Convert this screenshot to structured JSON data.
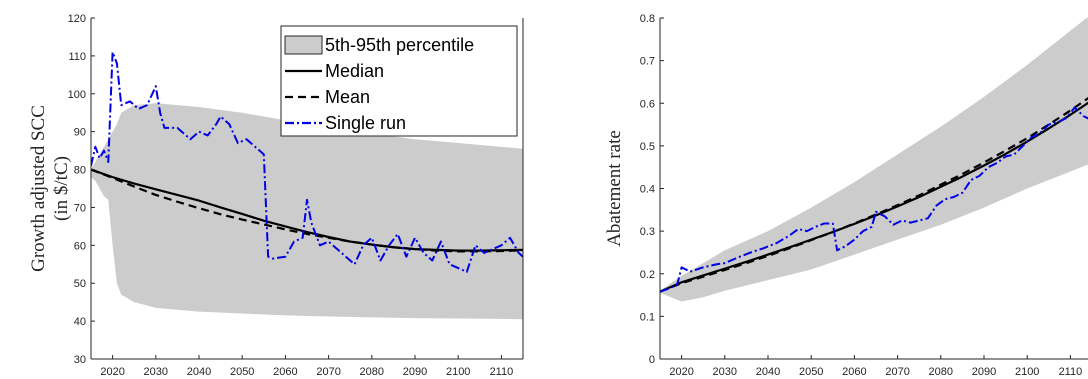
{
  "chart_data": [
    {
      "type": "line",
      "title": "",
      "xlabel": "",
      "ylabel": [
        "Growth adjusted SCC",
        "(in $/tC)"
      ],
      "xlim": [
        2015,
        2115
      ],
      "ylim": [
        30,
        120
      ],
      "xticks": [
        "2020",
        "2030",
        "2040",
        "2050",
        "2060",
        "2070",
        "2080",
        "2090",
        "2100",
        "2110"
      ],
      "yticks": [
        "30",
        "40",
        "50",
        "60",
        "70",
        "80",
        "90",
        "100",
        "110",
        "120"
      ],
      "grid": false,
      "legend_position": "top-right",
      "band": {
        "name": "5th-95th percentile",
        "color": "#cccccc",
        "x": [
          2015,
          2016,
          2017,
          2018,
          2019,
          2020,
          2021,
          2022,
          2025,
          2030,
          2040,
          2050,
          2060,
          2070,
          2080,
          2090,
          2100,
          2110,
          2115
        ],
        "upper": [
          80,
          82,
          84,
          86,
          88,
          90,
          92,
          95,
          97,
          97.5,
          96.5,
          95,
          93,
          91,
          89.5,
          88,
          87,
          86,
          85.5
        ],
        "lower": [
          78,
          77,
          75,
          73,
          72,
          60,
          50,
          47,
          45,
          43.5,
          42.5,
          42,
          41.5,
          41.2,
          41,
          40.8,
          40.7,
          40.6,
          40.5
        ]
      },
      "series": [
        {
          "name": "Median",
          "style": "solid",
          "color": "#000000",
          "x": [
            2015,
            2020,
            2025,
            2030,
            2035,
            2040,
            2045,
            2050,
            2055,
            2060,
            2065,
            2070,
            2075,
            2080,
            2085,
            2090,
            2095,
            2100,
            2105,
            2110,
            2115
          ],
          "y": [
            80,
            78,
            76.3,
            74.8,
            73.3,
            71.8,
            70,
            68.3,
            66.5,
            65,
            63.5,
            62.2,
            61,
            60.2,
            59.5,
            59,
            58.8,
            58.6,
            58.6,
            58.7,
            58.8
          ]
        },
        {
          "name": "Mean",
          "style": "dashed",
          "color": "#000000",
          "x": [
            2015,
            2020,
            2025,
            2030,
            2035,
            2040,
            2045,
            2050,
            2055,
            2060,
            2065,
            2070,
            2075,
            2080,
            2085,
            2090,
            2095,
            2100,
            2105,
            2110,
            2115
          ],
          "y": [
            80,
            77.8,
            75.5,
            73.3,
            71.5,
            69.8,
            68.2,
            66.8,
            65.5,
            64.2,
            63,
            62,
            61,
            60.2,
            59.5,
            59,
            58.6,
            58.4,
            58.4,
            58.5,
            58.7
          ]
        },
        {
          "name": "Single run",
          "style": "dashdot",
          "color": "#0000e6",
          "x": [
            2015,
            2016,
            2017,
            2018,
            2019,
            2020,
            2021,
            2022,
            2024,
            2026,
            2028,
            2030,
            2031,
            2032,
            2035,
            2038,
            2040,
            2042,
            2044,
            2045,
            2047,
            2049,
            2051,
            2053,
            2055,
            2056,
            2057,
            2060,
            2062,
            2064,
            2065,
            2066,
            2068,
            2070,
            2072,
            2074,
            2076,
            2078,
            2080,
            2082,
            2084,
            2086,
            2088,
            2090,
            2092,
            2094,
            2096,
            2098,
            2100,
            2102,
            2104,
            2106,
            2108,
            2110,
            2112,
            2114,
            2115
          ],
          "y": [
            81,
            86,
            83,
            85,
            82,
            111,
            108,
            97,
            98,
            96,
            97,
            102,
            95,
            91,
            91,
            88,
            90,
            89,
            92,
            94,
            92,
            87,
            88,
            86,
            84,
            57,
            56.5,
            57,
            61,
            62,
            72,
            66,
            60,
            61,
            59,
            57,
            55,
            60,
            62,
            56,
            60,
            63,
            57,
            62,
            58,
            56,
            61,
            55,
            54,
            53,
            60,
            58,
            59,
            60,
            62,
            58,
            57
          ]
        }
      ]
    },
    {
      "type": "line",
      "title": "",
      "xlabel": "",
      "ylabel": "Abatement rate",
      "xlim": [
        2015,
        2115
      ],
      "ylim": [
        0,
        0.8
      ],
      "xticks": [
        "2020",
        "2030",
        "2040",
        "2050",
        "2060",
        "2070",
        "2080",
        "2090",
        "2100",
        "2110"
      ],
      "yticks": [
        "0",
        "0.1",
        "0.2",
        "0.3",
        "0.4",
        "0.5",
        "0.6",
        "0.7",
        "0.8"
      ],
      "grid": false,
      "legend_position": "none",
      "band": {
        "name": "5th-95th percentile",
        "color": "#cccccc",
        "x": [
          2015,
          2020,
          2025,
          2030,
          2040,
          2050,
          2060,
          2070,
          2080,
          2090,
          2100,
          2110,
          2115
        ],
        "upper": [
          0.16,
          0.195,
          0.225,
          0.255,
          0.3,
          0.355,
          0.415,
          0.48,
          0.545,
          0.615,
          0.69,
          0.77,
          0.81
        ],
        "lower": [
          0.155,
          0.135,
          0.145,
          0.16,
          0.185,
          0.21,
          0.245,
          0.28,
          0.315,
          0.355,
          0.4,
          0.44,
          0.46
        ]
      },
      "series": [
        {
          "name": "Median",
          "style": "solid",
          "color": "#000000",
          "x": [
            2015,
            2020,
            2025,
            2030,
            2035,
            2040,
            2045,
            2050,
            2055,
            2060,
            2065,
            2070,
            2075,
            2080,
            2085,
            2090,
            2095,
            2100,
            2105,
            2110,
            2115
          ],
          "y": [
            0.158,
            0.18,
            0.196,
            0.212,
            0.228,
            0.245,
            0.262,
            0.28,
            0.298,
            0.317,
            0.337,
            0.358,
            0.38,
            0.404,
            0.428,
            0.454,
            0.481,
            0.51,
            0.541,
            0.573,
            0.607
          ]
        },
        {
          "name": "Mean",
          "style": "dashed",
          "color": "#000000",
          "x": [
            2015,
            2020,
            2025,
            2030,
            2035,
            2040,
            2045,
            2050,
            2055,
            2060,
            2065,
            2070,
            2075,
            2080,
            2085,
            2090,
            2095,
            2100,
            2105,
            2110,
            2115
          ],
          "y": [
            0.158,
            0.178,
            0.193,
            0.209,
            0.225,
            0.242,
            0.26,
            0.279,
            0.298,
            0.318,
            0.339,
            0.361,
            0.384,
            0.409,
            0.434,
            0.461,
            0.489,
            0.518,
            0.55,
            0.583,
            0.618
          ]
        },
        {
          "name": "Single run",
          "style": "dashdot",
          "color": "#0000e6",
          "x": [
            2015,
            2017,
            2019,
            2020,
            2022,
            2025,
            2028,
            2030,
            2033,
            2036,
            2039,
            2042,
            2045,
            2047,
            2049,
            2051,
            2053,
            2055,
            2056,
            2058,
            2060,
            2062,
            2064,
            2065,
            2067,
            2069,
            2071,
            2073,
            2075,
            2077,
            2079,
            2081,
            2083,
            2085,
            2087,
            2089,
            2091,
            2093,
            2095,
            2097,
            2099,
            2101,
            2103,
            2105,
            2107,
            2109,
            2111,
            2113,
            2115
          ],
          "y": [
            0.158,
            0.165,
            0.175,
            0.215,
            0.205,
            0.215,
            0.222,
            0.225,
            0.238,
            0.25,
            0.26,
            0.272,
            0.29,
            0.305,
            0.3,
            0.31,
            0.318,
            0.318,
            0.255,
            0.265,
            0.28,
            0.3,
            0.31,
            0.345,
            0.335,
            0.315,
            0.325,
            0.32,
            0.325,
            0.33,
            0.36,
            0.375,
            0.38,
            0.39,
            0.42,
            0.43,
            0.45,
            0.46,
            0.475,
            0.48,
            0.5,
            0.52,
            0.53,
            0.55,
            0.555,
            0.565,
            0.59,
            0.57,
            0.56
          ]
        }
      ]
    }
  ]
}
